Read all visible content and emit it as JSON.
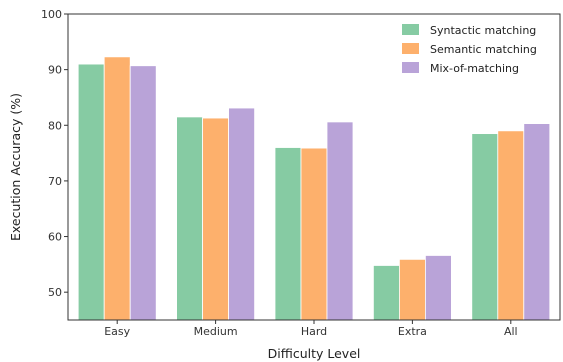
{
  "chart_data": {
    "type": "bar",
    "categories": [
      "Easy",
      "Medium",
      "Hard",
      "Extra",
      "All"
    ],
    "series": [
      {
        "name": "Syntactic matching",
        "color": "#86cba3",
        "values": [
          91.0,
          81.5,
          76.0,
          54.8,
          78.5
        ]
      },
      {
        "name": "Semantic matching",
        "color": "#fdb06c",
        "values": [
          92.3,
          81.3,
          75.9,
          55.9,
          79.0
        ]
      },
      {
        "name": "Mix-of-matching",
        "color": "#b9a3d8",
        "values": [
          90.7,
          83.1,
          80.6,
          56.6,
          80.3
        ]
      }
    ],
    "xlabel": "Difficulty Level",
    "ylabel": "Execution Accuracy (%)",
    "ylim": [
      45,
      100
    ],
    "yticks": [
      50,
      60,
      70,
      80,
      90,
      100
    ],
    "legend_position": "top-right",
    "grid": false
  }
}
